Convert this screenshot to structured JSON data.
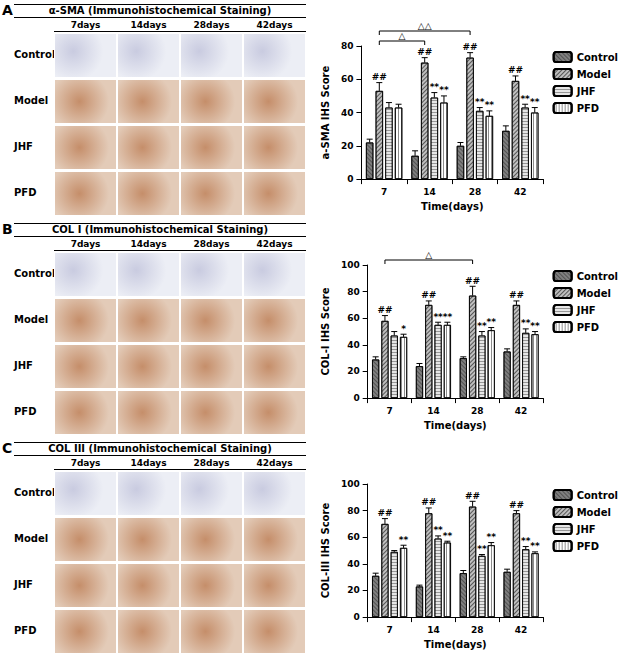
{
  "panels": [
    {
      "label": "A",
      "image_title": "α-SMA (Immunohistochemical Staining)",
      "image_columns": [
        "7days",
        "14days",
        "28days",
        "42days"
      ],
      "image_rows": [
        "Control",
        "Model",
        "JHF",
        "PFD"
      ]
    },
    {
      "label": "B",
      "image_title": "COL I (Immunohistochemical Staining)",
      "image_columns": [
        "7days",
        "14days",
        "28days",
        "42days"
      ],
      "image_rows": [
        "Control",
        "Model",
        "JHF",
        "PFD"
      ]
    },
    {
      "label": "C",
      "image_title": "COL III (Immunohistochemical Staining)",
      "image_columns": [
        "7days",
        "14days",
        "28days",
        "42days"
      ],
      "image_rows": [
        "Control",
        "Model",
        "JHF",
        "PFD"
      ]
    }
  ],
  "chart_data": [
    {
      "type": "bar",
      "y_label": "a-SMA IHS Score",
      "x_label": "Time(days)",
      "categories": [
        "7",
        "14",
        "28",
        "42"
      ],
      "series": [
        {
          "name": "Control",
          "color": "#7f7f7f",
          "values": [
            22,
            14,
            20,
            29
          ],
          "errors": [
            2,
            3,
            2,
            3
          ],
          "significance": [
            null,
            null,
            null,
            null
          ]
        },
        {
          "name": "Model",
          "color": "#bfbfbf",
          "values": [
            53,
            70,
            73,
            59
          ],
          "errors": [
            5,
            3,
            3,
            3
          ],
          "significance": [
            "##",
            "##",
            "##",
            "##"
          ]
        },
        {
          "name": "JHF",
          "color": "#e6e6e6",
          "values": [
            43,
            49,
            41,
            43
          ],
          "errors": [
            3,
            3,
            2,
            2
          ],
          "significance": [
            null,
            "**",
            "**",
            "**"
          ]
        },
        {
          "name": "PFD",
          "color": "#ffffff",
          "values": [
            43,
            46,
            38,
            40
          ],
          "errors": [
            2,
            4,
            3,
            3
          ],
          "significance": [
            null,
            "**",
            "**",
            "**"
          ]
        }
      ],
      "annotations": [
        {
          "text": "△",
          "series": "Model",
          "from": "7",
          "to": "14"
        },
        {
          "text": "△△",
          "series": "Model",
          "from": "7",
          "to": "28"
        }
      ],
      "ylim": [
        0,
        80
      ],
      "yticks": [
        0,
        20,
        40,
        60,
        80
      ],
      "grid": false,
      "legend": "right"
    },
    {
      "type": "bar",
      "y_label": "COL-I IHS Score",
      "x_label": "Time(days)",
      "categories": [
        "7",
        "14",
        "28",
        "42"
      ],
      "series": [
        {
          "name": "Control",
          "color": "#7f7f7f",
          "values": [
            29,
            24,
            30,
            35
          ],
          "errors": [
            2,
            2,
            1,
            2
          ],
          "significance": [
            null,
            null,
            null,
            null
          ]
        },
        {
          "name": "Model",
          "color": "#bfbfbf",
          "values": [
            58,
            70,
            77,
            70
          ],
          "errors": [
            4,
            3,
            7,
            3
          ],
          "significance": [
            "##",
            "##",
            "##",
            "##"
          ]
        },
        {
          "name": "JHF",
          "color": "#e6e6e6",
          "values": [
            47,
            55,
            47,
            49
          ],
          "errors": [
            3,
            2,
            3,
            3
          ],
          "significance": [
            null,
            "**",
            "**",
            "**"
          ]
        },
        {
          "name": "PFD",
          "color": "#ffffff",
          "values": [
            46,
            55,
            51,
            48
          ],
          "errors": [
            2,
            2,
            2,
            2
          ],
          "significance": [
            "*",
            "**",
            "**",
            "**"
          ]
        }
      ],
      "annotations": [
        {
          "text": "△",
          "series": "Model",
          "from": "7",
          "to": "28"
        }
      ],
      "ylim": [
        0,
        100
      ],
      "yticks": [
        0,
        20,
        40,
        60,
        80,
        100
      ],
      "grid": false,
      "legend": "right"
    },
    {
      "type": "bar",
      "y_label": "COL-III IHS Score",
      "x_label": "Time(days)",
      "categories": [
        "7",
        "14",
        "28",
        "42"
      ],
      "series": [
        {
          "name": "Control",
          "color": "#7f7f7f",
          "values": [
            31,
            23,
            33,
            34
          ],
          "errors": [
            2,
            1,
            2,
            2
          ],
          "significance": [
            null,
            null,
            null,
            null
          ]
        },
        {
          "name": "Model",
          "color": "#bfbfbf",
          "values": [
            70,
            78,
            83,
            78
          ],
          "errors": [
            4,
            4,
            4,
            2
          ],
          "significance": [
            "##",
            "##",
            "##",
            "##"
          ]
        },
        {
          "name": "JHF",
          "color": "#e6e6e6",
          "values": [
            49,
            59,
            46,
            51
          ],
          "errors": [
            1,
            2,
            1,
            2
          ],
          "significance": [
            null,
            "**",
            "**",
            "**"
          ]
        },
        {
          "name": "PFD",
          "color": "#ffffff",
          "values": [
            52,
            56,
            54,
            48
          ],
          "errors": [
            2,
            1,
            2,
            1
          ],
          "significance": [
            "**",
            "**",
            "**",
            "**"
          ]
        }
      ],
      "annotations": [],
      "ylim": [
        0,
        100
      ],
      "yticks": [
        0,
        20,
        40,
        60,
        80,
        100
      ],
      "grid": false,
      "legend": "right"
    }
  ]
}
